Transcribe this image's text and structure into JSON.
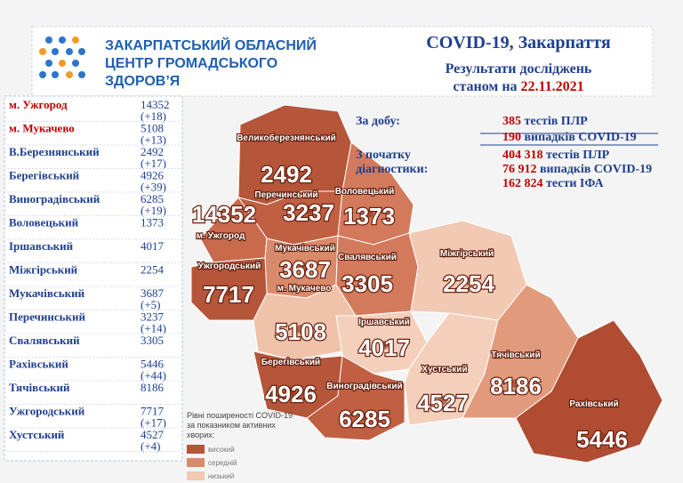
{
  "header": {
    "logo_lines": [
      "ЗАКАРПАТСЬКИЙ ОБЛАСНИЙ",
      "ЦЕНТР ГРОМАДСЬКОГО",
      "ЗДОРОВ’Я"
    ],
    "title": "COVID-19, Закарпаття",
    "subtitle": "Результати досліджень",
    "date_prefix": "станом на",
    "date": "22.11.2021"
  },
  "stats": {
    "daily_label": "За добу:",
    "daily": [
      {
        "number": "385",
        "text": "тестів ПЛР"
      },
      {
        "number": "190",
        "text": "випадків COVID-19"
      }
    ],
    "total_label": [
      "З початку",
      "діагностики:"
    ],
    "total": [
      {
        "number": "404 318",
        "text": "тестів ПЛР"
      },
      {
        "number": "76 912",
        "text": "випадків COVID-19"
      },
      {
        "number": "162 824",
        "text": "тести ІФА"
      }
    ]
  },
  "table": {
    "rows": [
      {
        "name": "м. Ужгород",
        "total": "14352",
        "delta": "(+18)"
      },
      {
        "name": "м. Мукачево",
        "total": "5108",
        "delta": "(+13)"
      },
      {
        "name": "В.Березнянський",
        "total": "2492",
        "delta": "(+17)"
      },
      {
        "name": "Берегівський",
        "total": "4926",
        "delta": "(+39)"
      },
      {
        "name": "Виноградівський",
        "total": "6285",
        "delta": "(+19)"
      },
      {
        "name": "Воловецький",
        "total": "1373"
      },
      {
        "name": "Іршавський",
        "total": "4017"
      },
      {
        "name": "Міжгірський",
        "total": "2254"
      },
      {
        "name": "Мукачівський",
        "total": "3687",
        "delta": "(+5)"
      },
      {
        "name": "Перечинський",
        "total": "3237",
        "delta": "(+14)"
      },
      {
        "name": "Свалявський",
        "total": "3305"
      },
      {
        "name": "Рахівський",
        "total": "5446",
        "delta": "(+44)"
      },
      {
        "name": "Тячівський",
        "total": "8186"
      },
      {
        "name": "Ужгородський",
        "total": "7717",
        "delta": "(+17)"
      },
      {
        "name": "Хустський",
        "total": "4527",
        "delta": "(+4)"
      }
    ]
  },
  "map": {
    "regions": [
      {
        "label": "Великоберезнянський",
        "number": "2492"
      },
      {
        "label": "Перечинський",
        "number": "3237"
      },
      {
        "label": "Воловецький",
        "number": "1373"
      },
      {
        "label": "м. Ужгород",
        "number": "14352"
      },
      {
        "label": "Мукачівський",
        "number": "3687"
      },
      {
        "label": "Свалявський",
        "number": "3305"
      },
      {
        "label": "Міжгірський",
        "number": "2254"
      },
      {
        "label": "Ужгородський",
        "number": "7717"
      },
      {
        "label": "м. Мукачево",
        "number": "5108"
      },
      {
        "label": "Іршавський",
        "number": "4017"
      },
      {
        "label": "Берегівський",
        "number": "4926"
      },
      {
        "label": "Виноградівський",
        "number": "6285"
      },
      {
        "label": "Хустський",
        "number": "4527"
      },
      {
        "label": "Тячівський",
        "number": "8186"
      },
      {
        "label": "Рахівський",
        "number": "5446"
      }
    ]
  },
  "legend": {
    "title": "Рівні поширеності COVID-19 за показником активних хворих:",
    "levels": [
      "високий",
      "середній",
      "низький"
    ]
  }
}
